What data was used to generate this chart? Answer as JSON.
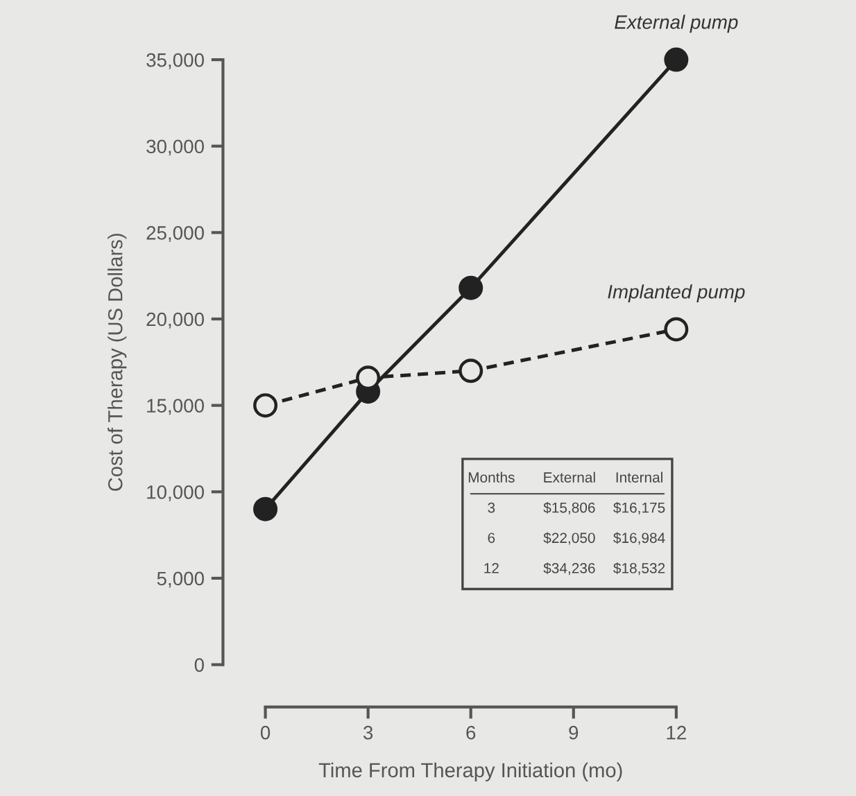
{
  "chart_data": {
    "type": "line",
    "xlabel": "Time From Therapy Initiation (mo)",
    "ylabel": "Cost of Therapy (US Dollars)",
    "x": [
      0,
      3,
      6,
      12
    ],
    "series": [
      {
        "name": "External pump",
        "color": "#222222",
        "line_style": "solid",
        "values": [
          9000,
          15800,
          21800,
          35000
        ]
      },
      {
        "name": "Implanted pump",
        "color": "#222222",
        "line_style": "dashed",
        "values": [
          15000,
          16600,
          17000,
          19400
        ]
      }
    ],
    "marker": "circle",
    "xlim": [
      0,
      12
    ],
    "xticks": [
      0,
      3,
      6,
      9,
      12
    ],
    "ylim": [
      0,
      35000
    ],
    "yticks": [
      {
        "value": 0,
        "label": "0"
      },
      {
        "value": 5000,
        "label": "5,000"
      },
      {
        "value": 10000,
        "label": "10,000"
      },
      {
        "value": 15000,
        "label": "15,000"
      },
      {
        "value": 20000,
        "label": "20,000"
      },
      {
        "value": 25000,
        "label": "25,000"
      },
      {
        "value": 30000,
        "label": "30,000"
      },
      {
        "value": 35000,
        "label": "35,000"
      }
    ],
    "annotations": [
      "Months",
      "External",
      "Internal",
      "3",
      "$15,806",
      "$16,175",
      "6",
      "$22,050",
      "$16,984",
      "12",
      "$34,236",
      "$18,532"
    ],
    "grid": false,
    "legend": false
  }
}
